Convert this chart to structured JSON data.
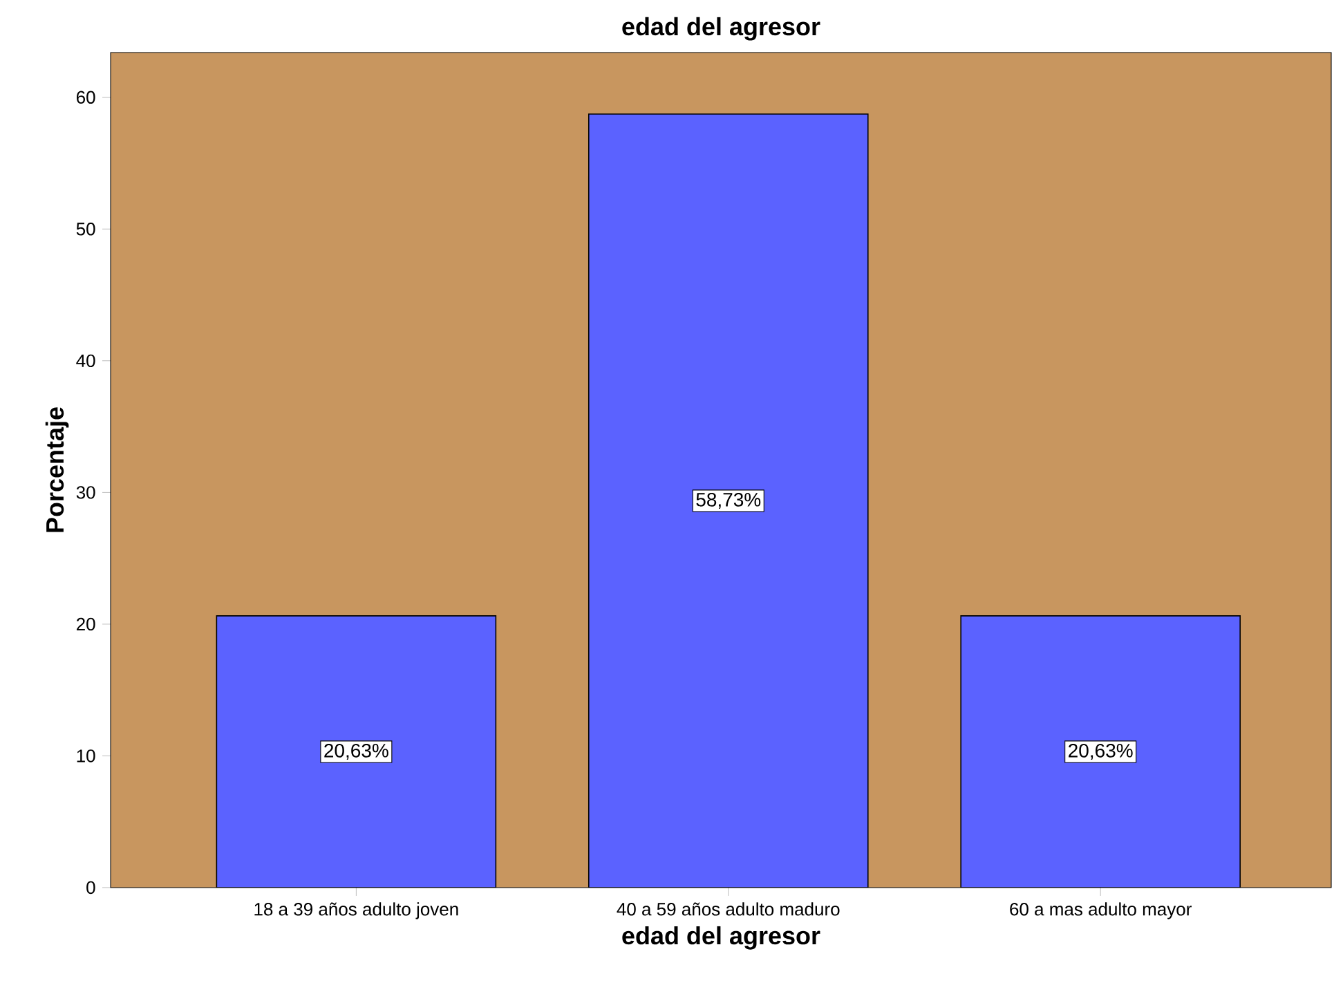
{
  "chart_data": {
    "type": "bar",
    "title": "edad del agresor",
    "xlabel": "edad del agresor",
    "ylabel": "Porcentaje",
    "categories": [
      "18 a 39 años adulto joven",
      "40 a 59 años adulto maduro",
      "60 a mas adulto mayor"
    ],
    "values": [
      20.63,
      58.73,
      20.63
    ],
    "color": "#5b62ff",
    "value_labels": [
      "20,63%",
      "58,73%",
      "20,63%"
    ],
    "ylim": [
      0,
      63.4
    ],
    "yticks": [
      0,
      10,
      20,
      30,
      40,
      50,
      60
    ],
    "grid": false
  }
}
